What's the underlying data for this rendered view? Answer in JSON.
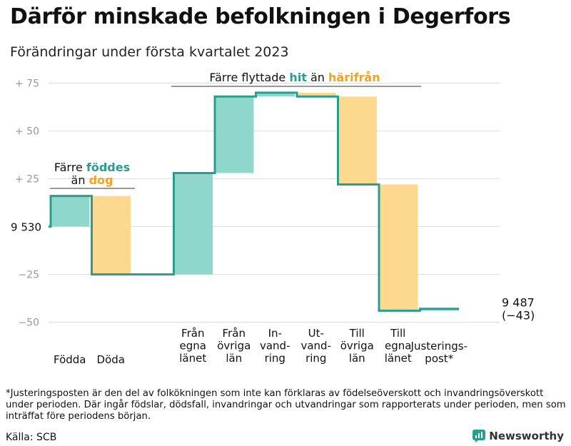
{
  "title": "Därför minskade befolkningen i Degerfors",
  "subtitle": "Förändringar under första kvartalet 2023",
  "colors": {
    "teal": "#2a9d8f",
    "teal_fill": "#8fd6cc",
    "orange": "#f4a11f",
    "orange_fill": "#fcd98f",
    "grid": "#dddddd",
    "axis_text": "#999999"
  },
  "annotations": {
    "births": {
      "line1_prefix": "Färre ",
      "line1_highlight": "föddes",
      "line2_prefix": "än ",
      "line2_highlight": "dog"
    },
    "moves": {
      "prefix": "Färre flyttade ",
      "highlight1": "hit",
      "middle": " än ",
      "highlight2": "härifrån"
    }
  },
  "chart_data": {
    "type": "waterfall",
    "start_label": "9 530",
    "end_label_1": "9 487",
    "end_label_2": "(−43)",
    "ylim": [
      -57,
      84
    ],
    "y_ticks": [
      {
        "value": 75,
        "label": "+ 75"
      },
      {
        "value": 50,
        "label": "+ 50"
      },
      {
        "value": 25,
        "label": "+ 25"
      },
      {
        "value": 0,
        "label": ""
      },
      {
        "value": -25,
        "label": "−25"
      },
      {
        "value": -50,
        "label": "−50"
      }
    ],
    "steps": [
      {
        "label": [
          "Födda"
        ],
        "from": 0,
        "to": 16,
        "kind": "in"
      },
      {
        "label": [
          "Döda"
        ],
        "from": 16,
        "to": -25,
        "kind": "out"
      },
      {
        "label": [],
        "from": -25,
        "to": -25,
        "kind": "gap"
      },
      {
        "label": [
          "Från",
          "egna",
          "länet"
        ],
        "from": -25,
        "to": 28,
        "kind": "in"
      },
      {
        "label": [
          "Från",
          "övriga",
          "län"
        ],
        "from": 28,
        "to": 68,
        "kind": "in"
      },
      {
        "label": [
          "In-",
          "vand-",
          "ring"
        ],
        "from": 68,
        "to": 70,
        "kind": "in"
      },
      {
        "label": [
          "Ut-",
          "vand-",
          "ring"
        ],
        "from": 70,
        "to": 68,
        "kind": "out"
      },
      {
        "label": [
          "Till",
          "övriga",
          "län"
        ],
        "from": 68,
        "to": 22,
        "kind": "out"
      },
      {
        "label": [
          "Till",
          "egna",
          "länet"
        ],
        "from": 22,
        "to": -44,
        "kind": "out"
      },
      {
        "label": [
          "Justerings-",
          "post*"
        ],
        "from": -44,
        "to": -43,
        "kind": "in"
      }
    ]
  },
  "footnote": "*Justeringsposten är den del av folkökningen som inte kan förklaras av födelseöverskott och invandringsöverskott under perioden. Där ingår födslar, dödsfall, invandringar och utvandringar som rapporterats under perioden, men som inträffat före periodens början.",
  "source": "Källa: SCB",
  "brand": "Newsworthy"
}
